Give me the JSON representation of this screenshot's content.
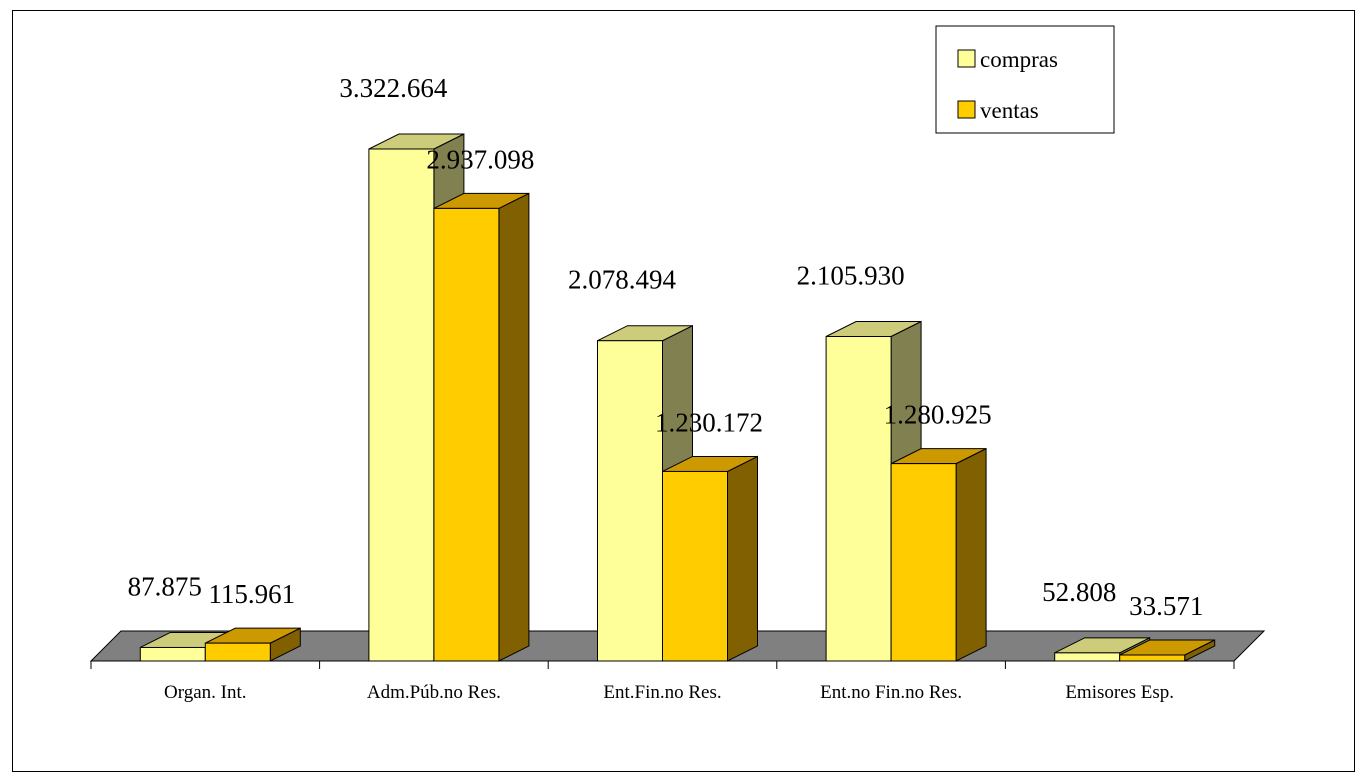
{
  "chart_data": {
    "type": "bar",
    "categories": [
      "Organ. Int.",
      "Adm.Púb.no Res.",
      "Ent.Fin.no Res.",
      "Ent.no Fin.no Res.",
      "Emisores Esp."
    ],
    "series": [
      {
        "name": "compras",
        "values": [
          87875,
          3322664,
          2078494,
          2105930,
          52808
        ],
        "labels": [
          "87.875",
          "3.322.664",
          "2.078.494",
          "2.105.930",
          "52.808"
        ]
      },
      {
        "name": "ventas",
        "values": [
          115961,
          2937098,
          1230172,
          1280925,
          33571
        ],
        "labels": [
          "115.961",
          "2.937.098",
          "1.230.172",
          "1.280.925",
          "33.571"
        ]
      }
    ],
    "colors": {
      "compras": {
        "front": "#FFFF99",
        "top": "#CCCC7A",
        "side": "#808050"
      },
      "ventas": {
        "front": "#FFCC00",
        "top": "#CC9900",
        "side": "#806000"
      },
      "floor": "#808080"
    },
    "legend_position": "top-right",
    "grid": false,
    "style": "3d-clustered-column"
  }
}
